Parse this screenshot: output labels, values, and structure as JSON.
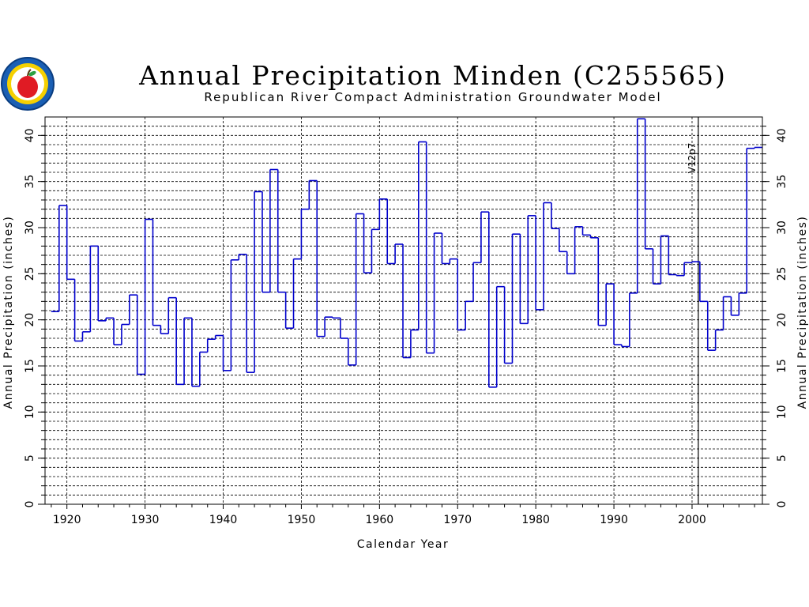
{
  "chart_data": {
    "type": "line",
    "style": "step",
    "title": "Annual Precipitation Minden (C255565)",
    "subtitle": "Republican River Compact Administration Groundwater Model",
    "xlabel": "Calendar Year",
    "ylabel": "Annual Precipitation (inches)",
    "ylabel_right": "Annual Precipitation (inches)",
    "xlim": [
      1917.2,
      2009
    ],
    "ylim": [
      0,
      42
    ],
    "x_ticks": [
      1920,
      1930,
      1940,
      1950,
      1960,
      1970,
      1980,
      1990,
      2000
    ],
    "y_ticks": [
      0,
      5,
      10,
      15,
      20,
      25,
      30,
      35,
      40
    ],
    "y_minor_step": 1,
    "grid": true,
    "line_color": "#0000cc",
    "annotation": {
      "label": "V12p7",
      "x": 2000.8
    },
    "x": [
      1918,
      1919,
      1920,
      1921,
      1922,
      1923,
      1924,
      1925,
      1926,
      1927,
      1928,
      1929,
      1930,
      1931,
      1932,
      1933,
      1934,
      1935,
      1936,
      1937,
      1938,
      1939,
      1940,
      1941,
      1942,
      1943,
      1944,
      1945,
      1946,
      1947,
      1948,
      1949,
      1950,
      1951,
      1952,
      1953,
      1954,
      1955,
      1956,
      1957,
      1958,
      1959,
      1960,
      1961,
      1962,
      1963,
      1964,
      1965,
      1966,
      1967,
      1968,
      1969,
      1970,
      1971,
      1972,
      1973,
      1974,
      1975,
      1976,
      1977,
      1978,
      1979,
      1980,
      1981,
      1982,
      1983,
      1984,
      1985,
      1986,
      1987,
      1988,
      1989,
      1990,
      1991,
      1992,
      1993,
      1994,
      1995,
      1996,
      1997,
      1998,
      1999,
      2000,
      2001,
      2002,
      2003,
      2004,
      2005,
      2006,
      2007,
      2008
    ],
    "y": [
      20.9,
      32.4,
      24.4,
      17.7,
      18.7,
      28.0,
      19.9,
      20.2,
      17.3,
      19.5,
      22.7,
      14.1,
      30.9,
      19.4,
      18.5,
      22.4,
      13.0,
      20.2,
      12.8,
      16.5,
      17.9,
      18.3,
      14.5,
      26.5,
      27.1,
      14.3,
      33.9,
      23.0,
      36.3,
      23.0,
      19.1,
      26.6,
      32.0,
      35.1,
      18.2,
      20.3,
      20.2,
      18.0,
      15.1,
      31.5,
      25.1,
      29.8,
      33.1,
      26.1,
      28.2,
      15.9,
      18.9,
      39.3,
      16.4,
      29.4,
      26.1,
      26.6,
      18.9,
      22.0,
      26.2,
      31.7,
      12.7,
      23.6,
      15.3,
      29.3,
      19.6,
      31.3,
      21.1,
      32.7,
      29.9,
      27.4,
      25.0,
      30.1,
      29.2,
      28.9,
      19.4,
      23.9,
      17.3,
      17.1,
      22.9,
      41.8,
      27.7,
      23.9,
      29.1,
      24.9,
      24.8,
      26.2,
      26.3,
      22.0,
      16.7,
      18.9,
      22.5,
      20.5,
      22.9,
      38.6,
      38.7
    ]
  },
  "logo": {
    "name": "rrca-apple-seal-icon"
  }
}
